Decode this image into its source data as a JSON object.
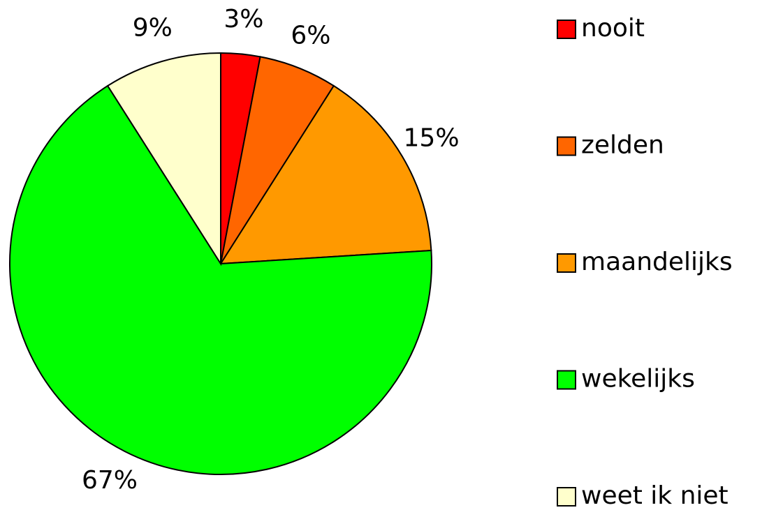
{
  "chart_data": {
    "type": "pie",
    "categories": [
      "nooit",
      "zelden",
      "maandelijks",
      "wekelijks",
      "weet ik niet"
    ],
    "values": [
      3,
      6,
      15,
      67,
      9
    ],
    "value_labels": [
      "3%",
      "6%",
      "15%",
      "67%",
      "9%"
    ],
    "colors": [
      "#ff0000",
      "#ff6600",
      "#ff9900",
      "#00ff00",
      "#ffffcc"
    ],
    "legend": "right"
  }
}
